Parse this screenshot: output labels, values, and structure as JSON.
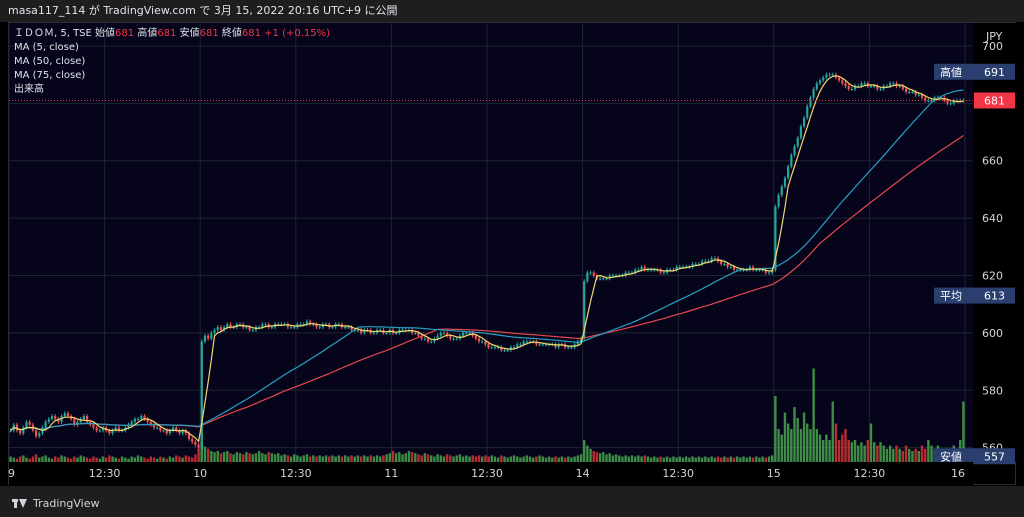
{
  "header": {
    "caption": "masa117_114 が TradingView.com で 3月 15, 2022 20:16 UTC+9 に公開"
  },
  "legend": {
    "symbol": "ＩＤＯＭ, 5, TSE",
    "open_label": "始値",
    "open_value": "681",
    "high_label": "高値",
    "high_value": "681",
    "low_label": "安値",
    "low_value": "681",
    "close_label": "終値",
    "close_value": "681",
    "change": "+1 (+0.15%)",
    "indicators": [
      "MA (5, close)",
      "MA (50, close)",
      "MA (75, close)",
      "出来高"
    ]
  },
  "price_axis": {
    "currency": "JPY",
    "ticks": [
      "700",
      "680",
      "660",
      "640",
      "620",
      "600",
      "580",
      "560"
    ],
    "markers": [
      {
        "label": "高値",
        "value": "691",
        "color": "#2a3f6e"
      },
      {
        "label": "",
        "value": "681",
        "color": "#f23645"
      },
      {
        "label": "平均",
        "value": "613",
        "color": "#2a3f6e"
      },
      {
        "label": "安値",
        "value": "557",
        "color": "#2a3f6e"
      }
    ]
  },
  "time_axis": {
    "labels": [
      "9",
      "12:30",
      "10",
      "12:30",
      "11",
      "12:30",
      "14",
      "12:30",
      "15",
      "12:30",
      "16"
    ]
  },
  "brand": {
    "name": "TradingView"
  },
  "colors": {
    "up": "#26a69a",
    "down": "#ef5350",
    "ma5": "#f5d76e",
    "ma50": "#27a0c4",
    "ma75": "#e5484d",
    "vol_up": "#4caf50",
    "vol_down": "#e53935",
    "bg": "#000000",
    "grid": "#1f2430"
  },
  "chart_data": {
    "type": "line",
    "title": "ＩＤＯＭ, 5, TSE",
    "ylabel": "JPY",
    "ylim": [
      555,
      708
    ],
    "x_labels": [
      "9",
      "12:30",
      "10",
      "12:30",
      "11",
      "12:30",
      "14",
      "12:30",
      "15",
      "12:30",
      "16"
    ],
    "grid": true,
    "legend_position": "top-left",
    "session_boundaries": [
      0,
      60,
      120,
      180,
      240,
      300
    ],
    "closes": [
      [
        566,
        568,
        566,
        565,
        567,
        569,
        568,
        566,
        564,
        565,
        567,
        569,
        570,
        571,
        570,
        569,
        571,
        572,
        571,
        570,
        568,
        569,
        570,
        571,
        569,
        568,
        567,
        566,
        566,
        567,
        566,
        565,
        566,
        567,
        566,
        566,
        567,
        568,
        569,
        570,
        570,
        571,
        570,
        569,
        568,
        567,
        567,
        566,
        566,
        565,
        566,
        567,
        566,
        565,
        566,
        565,
        563,
        562,
        561,
        560
      ],
      [
        597,
        599,
        598,
        600,
        601,
        602,
        601,
        602,
        603,
        602,
        602,
        603,
        603,
        602,
        602,
        601,
        601,
        602,
        602,
        603,
        603,
        602,
        602,
        603,
        603,
        603,
        603,
        602,
        602,
        602,
        603,
        603,
        603,
        604,
        603,
        603,
        602,
        602,
        603,
        603,
        602,
        602,
        603,
        603,
        602,
        602,
        602,
        601,
        601,
        601,
        600,
        601,
        601,
        600,
        600,
        601,
        601,
        600,
        600,
        601
      ],
      [
        600,
        600,
        601,
        601,
        601,
        601,
        600,
        600,
        599,
        598,
        598,
        597,
        597,
        598,
        599,
        600,
        600,
        599,
        598,
        598,
        598,
        599,
        600,
        600,
        600,
        599,
        598,
        597,
        597,
        596,
        595,
        595,
        595,
        595,
        594,
        594,
        594,
        595,
        595,
        596,
        596,
        597,
        597,
        597,
        597,
        596,
        596,
        596,
        596,
        596,
        596,
        595,
        596,
        596,
        595,
        595,
        595,
        596,
        597,
        598
      ],
      [
        618,
        621,
        621,
        620,
        619,
        619,
        619,
        619,
        620,
        620,
        620,
        620,
        620,
        621,
        621,
        621,
        622,
        622,
        623,
        622,
        622,
        622,
        622,
        622,
        621,
        621,
        622,
        622,
        622,
        623,
        623,
        623,
        623,
        623,
        624,
        624,
        624,
        625,
        625,
        625,
        626,
        626,
        625,
        624,
        624,
        623,
        623,
        622,
        622,
        622,
        622,
        622,
        623,
        622,
        622,
        622,
        622,
        621,
        621,
        622
      ],
      [
        644,
        648,
        651,
        654,
        658,
        662,
        665,
        668,
        672,
        675,
        679,
        682,
        685,
        687,
        688,
        689,
        690,
        690,
        690,
        689,
        688,
        687,
        686,
        685,
        685,
        686,
        686,
        687,
        687,
        686,
        686,
        686,
        685,
        685,
        686,
        686,
        687,
        687,
        686,
        686,
        685,
        684,
        684,
        684,
        683,
        683,
        682,
        681,
        681,
        681,
        682,
        682,
        682,
        681,
        680,
        680,
        681,
        681,
        681,
        681
      ]
    ],
    "volume_relative": [
      [
        0.05,
        0.04,
        0.03,
        0.05,
        0.06,
        0.04,
        0.03,
        0.05,
        0.07,
        0.04,
        0.05,
        0.06,
        0.04,
        0.03,
        0.05,
        0.04,
        0.06,
        0.05,
        0.04,
        0.03,
        0.05,
        0.04,
        0.06,
        0.05,
        0.04,
        0.03,
        0.05,
        0.04,
        0.03,
        0.05,
        0.04,
        0.06,
        0.05,
        0.04,
        0.03,
        0.05,
        0.04,
        0.03,
        0.05,
        0.04,
        0.06,
        0.05,
        0.04,
        0.03,
        0.05,
        0.04,
        0.03,
        0.05,
        0.04,
        0.03,
        0.05,
        0.04,
        0.06,
        0.05,
        0.04,
        0.06,
        0.05,
        0.04,
        0.07,
        0.12
      ],
      [
        0.18,
        0.14,
        0.12,
        0.1,
        0.09,
        0.1,
        0.08,
        0.09,
        0.1,
        0.08,
        0.07,
        0.09,
        0.08,
        0.07,
        0.09,
        0.08,
        0.07,
        0.08,
        0.1,
        0.08,
        0.07,
        0.09,
        0.08,
        0.07,
        0.08,
        0.06,
        0.07,
        0.06,
        0.05,
        0.07,
        0.06,
        0.05,
        0.06,
        0.07,
        0.05,
        0.06,
        0.05,
        0.06,
        0.05,
        0.06,
        0.05,
        0.06,
        0.05,
        0.06,
        0.05,
        0.06,
        0.05,
        0.06,
        0.05,
        0.06,
        0.05,
        0.06,
        0.05,
        0.06,
        0.05,
        0.06,
        0.05,
        0.06,
        0.07,
        0.08
      ],
      [
        0.1,
        0.08,
        0.09,
        0.07,
        0.08,
        0.1,
        0.09,
        0.08,
        0.07,
        0.06,
        0.08,
        0.07,
        0.06,
        0.05,
        0.07,
        0.06,
        0.05,
        0.07,
        0.06,
        0.05,
        0.06,
        0.07,
        0.05,
        0.06,
        0.05,
        0.06,
        0.05,
        0.06,
        0.05,
        0.06,
        0.05,
        0.06,
        0.05,
        0.04,
        0.06,
        0.05,
        0.04,
        0.05,
        0.06,
        0.05,
        0.04,
        0.05,
        0.06,
        0.05,
        0.04,
        0.05,
        0.06,
        0.05,
        0.04,
        0.05,
        0.04,
        0.05,
        0.04,
        0.05,
        0.04,
        0.05,
        0.04,
        0.05,
        0.06,
        0.07
      ],
      [
        0.2,
        0.15,
        0.12,
        0.1,
        0.09,
        0.08,
        0.09,
        0.07,
        0.08,
        0.06,
        0.07,
        0.06,
        0.05,
        0.06,
        0.05,
        0.06,
        0.05,
        0.06,
        0.05,
        0.06,
        0.05,
        0.04,
        0.05,
        0.04,
        0.05,
        0.04,
        0.05,
        0.04,
        0.05,
        0.04,
        0.05,
        0.04,
        0.05,
        0.04,
        0.05,
        0.04,
        0.05,
        0.04,
        0.05,
        0.04,
        0.05,
        0.04,
        0.05,
        0.04,
        0.05,
        0.04,
        0.05,
        0.04,
        0.05,
        0.04,
        0.05,
        0.04,
        0.05,
        0.04,
        0.05,
        0.04,
        0.05,
        0.04,
        0.05,
        0.06
      ],
      [
        0.6,
        0.3,
        0.25,
        0.45,
        0.35,
        0.3,
        0.5,
        0.4,
        0.3,
        0.45,
        0.35,
        0.3,
        0.85,
        0.3,
        0.25,
        0.2,
        0.25,
        0.2,
        0.55,
        0.35,
        0.2,
        0.25,
        0.3,
        0.2,
        0.18,
        0.2,
        0.15,
        0.18,
        0.15,
        0.2,
        0.35,
        0.18,
        0.15,
        0.18,
        0.15,
        0.12,
        0.15,
        0.12,
        0.15,
        0.12,
        0.1,
        0.15,
        0.12,
        0.1,
        0.12,
        0.1,
        0.15,
        0.12,
        0.2,
        0.15,
        0.12,
        0.15,
        0.12,
        0.1,
        0.12,
        0.1,
        0.15,
        0.12,
        0.2,
        0.55
      ]
    ]
  }
}
